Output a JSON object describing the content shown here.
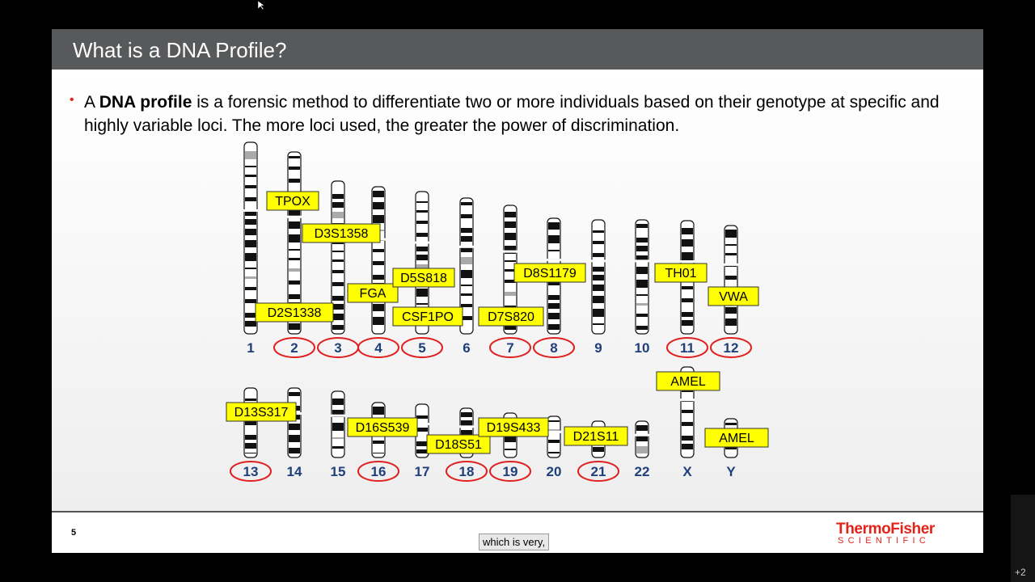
{
  "slide": {
    "title": "What is a DNA Profile?",
    "body": {
      "prefix": "A ",
      "bold": "DNA profile",
      "rest": " is a forensic method to differentiate two or more individuals based on their genotype at specific and highly variable loci.  The more loci used, the greater the power of discrimination."
    },
    "page_number": "5",
    "caption": "which is very,",
    "logo": {
      "top": "ThermoFisher",
      "bottom": "SCIENTIFIC"
    }
  },
  "chromosome_rows": [
    [
      "1",
      "2",
      "3",
      "4",
      "5",
      "6",
      "7",
      "8",
      "9",
      "10",
      "11",
      "12"
    ],
    [
      "13",
      "14",
      "15",
      "16",
      "17",
      "18",
      "19",
      "20",
      "21",
      "22",
      "X",
      "Y"
    ]
  ],
  "circled_chromosomes": [
    "2",
    "3",
    "4",
    "5",
    "7",
    "8",
    "11",
    "12",
    "13",
    "16",
    "18",
    "19",
    "21"
  ],
  "loci": [
    "TPOX",
    "D3S1358",
    "D2S1338",
    "FGA",
    "D5S818",
    "CSF1PO",
    "D7S820",
    "D8S1179",
    "TH01",
    "VWA",
    "AMEL",
    "D13S317",
    "D16S539",
    "D18S51",
    "D19S433",
    "D21S11",
    "AMEL"
  ],
  "window": {
    "overflow_count": "+2"
  },
  "colors": {
    "title_bar": "#58595b",
    "locus_label": "#ffff00",
    "circle": "#e02020",
    "chromosome_number": "#1f3f7a",
    "brand": "#e2231a"
  }
}
